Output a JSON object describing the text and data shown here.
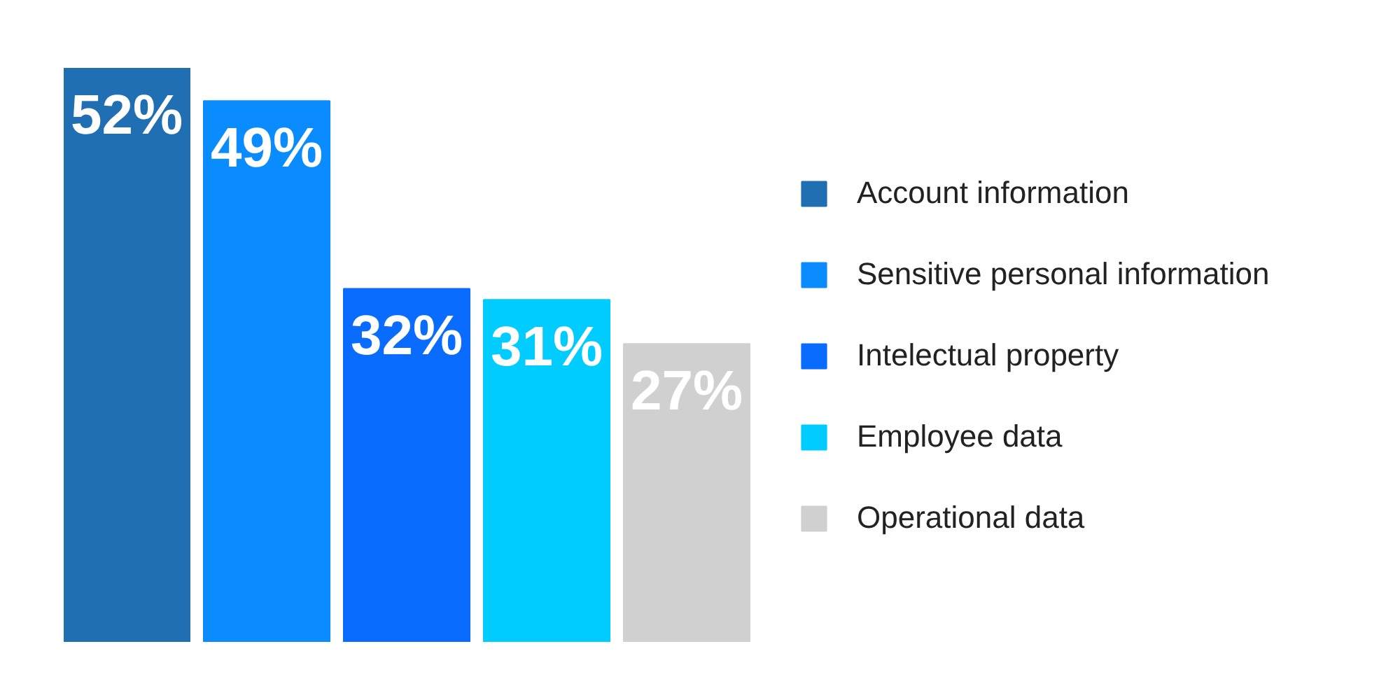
{
  "chart_data": {
    "type": "bar",
    "categories": [
      null,
      null,
      null,
      null,
      null
    ],
    "series": [
      {
        "name": "Account information",
        "color": "#1f6fb2",
        "values": [
          52,
          null,
          null,
          null,
          null
        ],
        "value_labels": [
          "52%",
          null,
          null,
          null,
          null
        ]
      },
      {
        "name": "Sensitive personal information",
        "color": "#0a8cff",
        "values": [
          null,
          49,
          null,
          null,
          null
        ],
        "value_labels": [
          null,
          "49%",
          null,
          null,
          null
        ]
      },
      {
        "name": "Intelectual property",
        "color": "#0a6cff",
        "values": [
          null,
          null,
          32,
          null,
          null
        ],
        "value_labels": [
          null,
          null,
          "32%",
          null,
          null
        ]
      },
      {
        "name": "Employee data",
        "color": "#00ccff",
        "values": [
          null,
          null,
          null,
          31,
          null
        ],
        "value_labels": [
          null,
          null,
          null,
          "31%",
          null
        ]
      },
      {
        "name": "Operational data",
        "color": "#d0d0d0",
        "values": [
          null,
          null,
          null,
          null,
          27
        ],
        "value_labels": [
          null,
          null,
          null,
          null,
          "27%"
        ]
      }
    ],
    "stacked": true,
    "legend": "right",
    "grid": false
  }
}
